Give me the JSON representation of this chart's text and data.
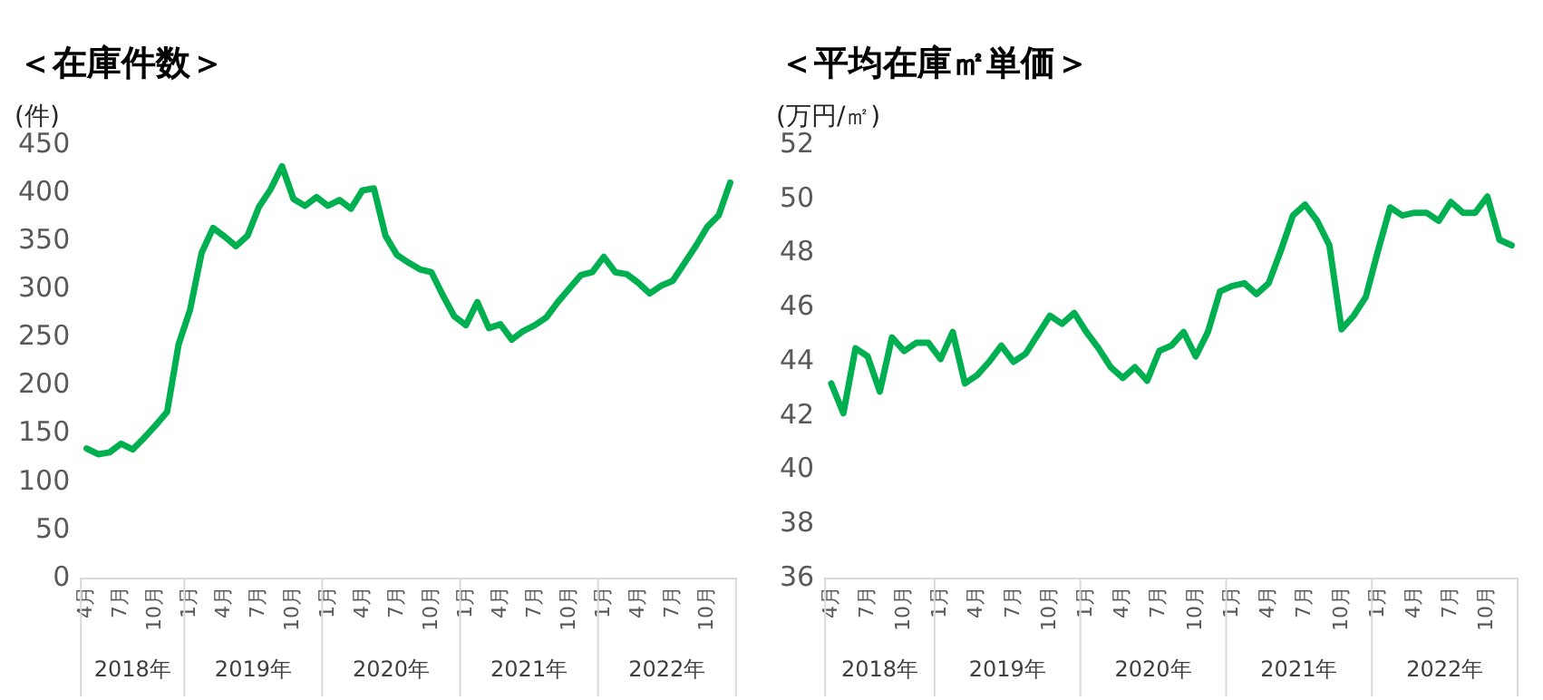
{
  "chart_data": [
    {
      "type": "line",
      "title": "＜在庫件数＞",
      "ylabel": "(件)",
      "categories": [
        "4月",
        null,
        null,
        "7月",
        null,
        null,
        "10月",
        null,
        null,
        "1月",
        null,
        null,
        "4月",
        null,
        null,
        "7月",
        null,
        null,
        "10月",
        null,
        null,
        "1月",
        null,
        null,
        "4月",
        null,
        null,
        "7月",
        null,
        null,
        "10月",
        null,
        null,
        "1月",
        null,
        null,
        "4月",
        null,
        null,
        "7月",
        null,
        null,
        "10月",
        null,
        null,
        "1月",
        null,
        null,
        "4月",
        null,
        null,
        "7月",
        null,
        null,
        "10月",
        null,
        null
      ],
      "series": [
        {
          "color": "#00b050",
          "values": [
            135,
            129,
            131,
            140,
            134,
            146,
            159,
            173,
            243,
            279,
            338,
            364,
            355,
            345,
            356,
            386,
            404,
            428,
            394,
            387,
            396,
            387,
            393,
            384,
            403,
            405,
            356,
            336,
            328,
            321,
            318,
            294,
            272,
            263,
            287,
            260,
            264,
            248,
            257,
            263,
            271,
            287,
            301,
            315,
            318,
            334,
            318,
            316,
            307,
            296,
            304,
            309,
            327,
            345,
            365,
            377,
            411
          ]
        }
      ],
      "ylim": [
        0,
        450
      ],
      "yticks": [
        0,
        50,
        100,
        150,
        200,
        250,
        300,
        350,
        400,
        450
      ],
      "grid": false,
      "legend": false,
      "marker": "none",
      "annotations": [
        "2018年",
        "2019年",
        "2020年",
        "2021年",
        "2022年"
      ]
    },
    {
      "type": "line",
      "title": "＜平均在庫㎡単価＞",
      "ylabel": "(万円/㎡)",
      "categories": [
        "4月",
        null,
        null,
        "7月",
        null,
        null,
        "10月",
        null,
        null,
        "1月",
        null,
        null,
        "4月",
        null,
        null,
        "7月",
        null,
        null,
        "10月",
        null,
        null,
        "1月",
        null,
        null,
        "4月",
        null,
        null,
        "7月",
        null,
        null,
        "10月",
        null,
        null,
        "1月",
        null,
        null,
        "4月",
        null,
        null,
        "7月",
        null,
        null,
        "10月",
        null,
        null,
        "1月",
        null,
        null,
        "4月",
        null,
        null,
        "7月",
        null,
        null,
        "10月",
        null,
        null
      ],
      "series": [
        {
          "color": "#00b050",
          "values": [
            43.2,
            42.1,
            44.5,
            44.2,
            42.9,
            44.9,
            44.4,
            44.7,
            44.7,
            44.1,
            45.1,
            43.2,
            43.5,
            44.0,
            44.6,
            44.0,
            44.3,
            45.0,
            45.7,
            45.4,
            45.8,
            45.1,
            44.5,
            43.8,
            43.4,
            43.8,
            43.3,
            44.4,
            44.6,
            45.1,
            44.2,
            45.1,
            46.6,
            46.8,
            46.9,
            46.5,
            46.9,
            48.1,
            49.4,
            49.8,
            49.2,
            48.3,
            45.2,
            45.7,
            46.4,
            48.1,
            49.7,
            49.4,
            49.5,
            49.5,
            49.2,
            49.9,
            49.5,
            49.5,
            50.1,
            48.5,
            48.3
          ]
        }
      ],
      "ylim": [
        36,
        52
      ],
      "yticks": [
        36,
        38,
        40,
        42,
        44,
        46,
        48,
        50,
        52
      ],
      "grid": false,
      "legend": false,
      "marker": "none",
      "annotations": [
        "2018年",
        "2019年",
        "2020年",
        "2021年",
        "2022年"
      ]
    }
  ]
}
